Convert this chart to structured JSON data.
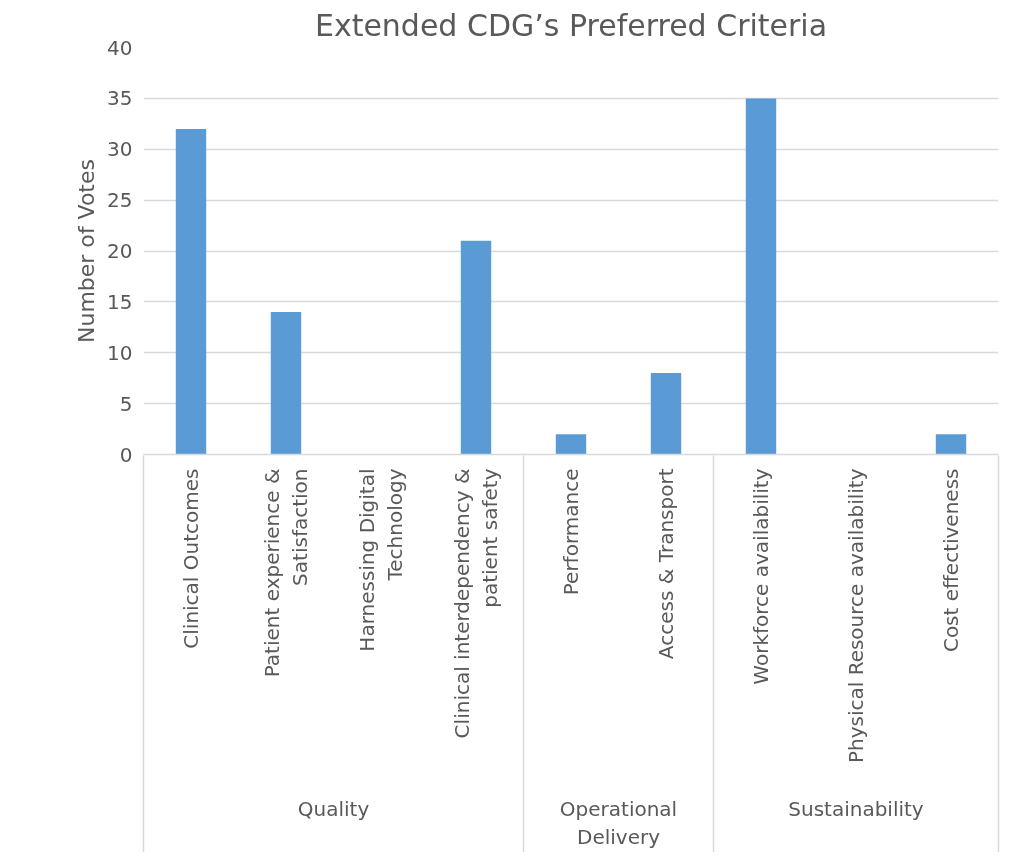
{
  "chart_data": {
    "type": "bar",
    "title": "Extended CDG’s Preferred Criteria",
    "ylabel": "Number of Votes",
    "categories": [
      "Clinical Outcomes",
      "Patient experience &\nSatisfaction",
      "Harnessing Digital\nTechnology",
      "Clinical interdependency &\npatient safety",
      "Performance",
      "Access & Transport",
      "Workforce availability",
      "Physical Resource availability",
      "Cost effectiveness"
    ],
    "values": [
      32,
      14,
      0,
      21,
      2,
      8,
      35,
      0,
      2
    ],
    "color": "#5b9bd5",
    "ylim": [
      0,
      40
    ],
    "yticks": [
      0,
      5,
      10,
      15,
      20,
      25,
      30,
      35,
      40
    ],
    "grid": "y",
    "annotations": [
      "Quality",
      "Operational\nDelivery",
      "Sustainability"
    ]
  }
}
